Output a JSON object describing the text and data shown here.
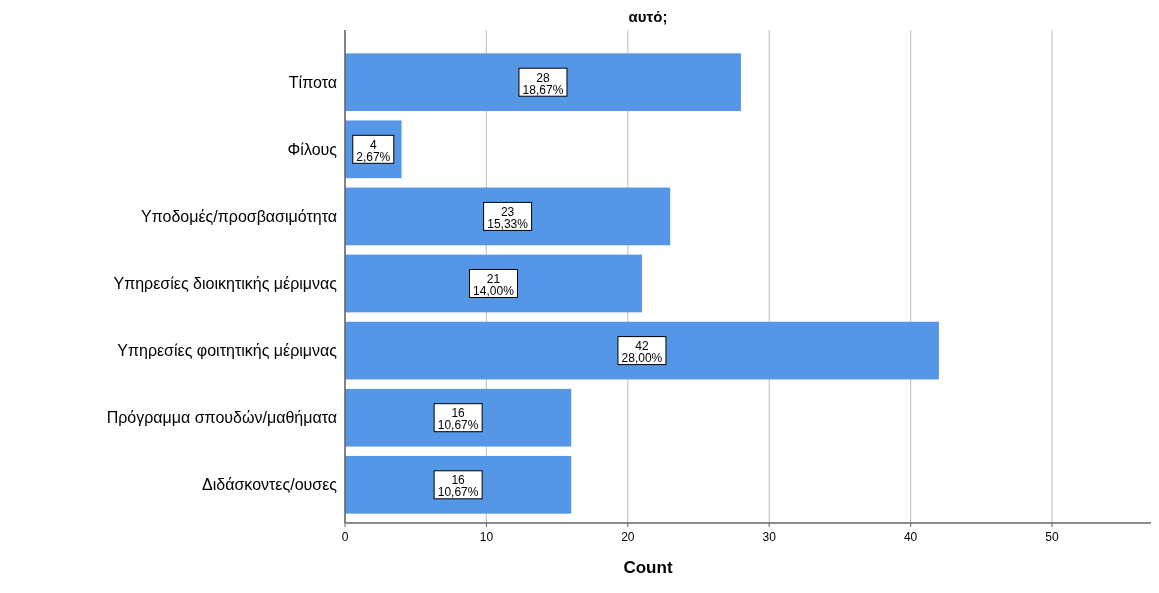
{
  "chart_data": {
    "type": "bar",
    "orientation": "horizontal",
    "title": "αυτό;",
    "xlabel": "Count",
    "categories": [
      "Τίποτα",
      "Φίλους",
      "Υποδομές/προσβασιμότητα",
      "Υπηρεσίες διοικητικής μέριμνας",
      "Υπηρεσίες φοιτητικής μέριμνας",
      "Πρόγραμμα σπουδών/μαθήματα",
      "Διδάσκοντες/ουσες"
    ],
    "values": [
      28,
      4,
      23,
      21,
      42,
      16,
      16
    ],
    "value_labels": [
      "28\n18,67%",
      "4\n2,67%",
      "23\n15,33%",
      "21\n14,00%",
      "42\n28,00%",
      "16\n10,67%",
      "16\n10,67%"
    ],
    "color": "#5596e6",
    "xlim": [
      0,
      57
    ],
    "xticks": [
      0,
      10,
      20,
      30,
      40,
      50
    ],
    "grid": "x"
  }
}
